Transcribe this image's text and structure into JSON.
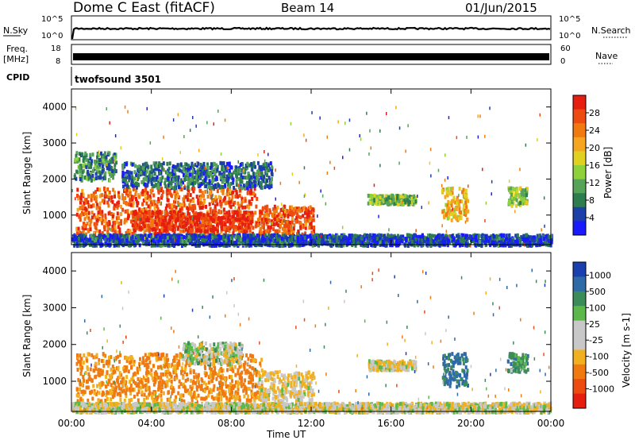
{
  "header": {
    "station": "Dome C East (fitACF)",
    "beam": "Beam 14",
    "date": "01/Jun/2015"
  },
  "noise_panel": {
    "left_label": "N.Sky",
    "left_ticks": [
      "10^5",
      "10^0"
    ],
    "right_label": "N.Search",
    "right_ticks": [
      "10^5",
      "10^0"
    ]
  },
  "freq_panel": {
    "left_label_top": "Freq.",
    "left_label_unit": "[MHz]",
    "left_ticks": [
      "18",
      "8"
    ],
    "right_label": "Nave",
    "right_ticks": [
      "60",
      "0"
    ]
  },
  "cpid_panel": {
    "label": "CPID",
    "value": "twofsound 3501"
  },
  "colors": {
    "power": [
      "#1a1aff",
      "#1c3fa8",
      "#2e7d4f",
      "#56a35a",
      "#8fd13a",
      "#e0d020",
      "#f5a520",
      "#f07a10",
      "#ee4b10",
      "#e61e0f"
    ],
    "velocity": [
      "#1a3fae",
      "#2f6aa8",
      "#3c8c5a",
      "#5cb84a",
      "#c8c8c8",
      "#c8c8c8",
      "#f0b020",
      "#f07a10",
      "#ee4b10",
      "#e61e0f"
    ]
  },
  "chart_data": [
    {
      "type": "heatmap",
      "name": "power",
      "ylabel": "Slant Range [km]",
      "xlabel": "Time UT",
      "xlim": [
        "00:00",
        "24:00"
      ],
      "ylim": [
        180,
        4500
      ],
      "x_ticks": [
        "00:00",
        "04:00",
        "08:00",
        "12:00",
        "16:00",
        "20:00",
        "00:00"
      ],
      "y_ticks": [
        1000,
        2000,
        3000,
        4000
      ],
      "colorbar": {
        "label": "Power [dB]",
        "ticks": [
          4,
          8,
          12,
          16,
          20,
          24,
          28
        ]
      },
      "blobs": [
        {
          "t0": 0.2,
          "t1": 9.3,
          "r0": 500,
          "r1": 1800,
          "level": 26
        },
        {
          "t0": 3.0,
          "t1": 9.0,
          "r0": 600,
          "r1": 1150,
          "level": 29
        },
        {
          "t0": 9.3,
          "t1": 12.1,
          "r0": 500,
          "r1": 1300,
          "level": 27
        },
        {
          "t0": 0.1,
          "t1": 2.2,
          "r0": 2000,
          "r1": 2800,
          "level": 10
        },
        {
          "t0": 2.5,
          "t1": 10.0,
          "r0": 1800,
          "r1": 2500,
          "level": 8
        },
        {
          "t0": 14.8,
          "t1": 17.2,
          "r0": 1350,
          "r1": 1600,
          "level": 14
        },
        {
          "t0": 18.5,
          "t1": 19.8,
          "r0": 900,
          "r1": 1800,
          "level": 20
        },
        {
          "t0": 21.8,
          "t1": 22.8,
          "r0": 1300,
          "r1": 1800,
          "level": 15
        },
        {
          "t0": 0.0,
          "t1": 24.0,
          "r0": 200,
          "r1": 500,
          "level": 6
        }
      ]
    },
    {
      "type": "heatmap",
      "name": "velocity",
      "ylabel": "Slant Range [km]",
      "xlabel": "Time UT",
      "xlim": [
        "00:00",
        "24:00"
      ],
      "ylim": [
        180,
        4500
      ],
      "x_ticks": [
        "00:00",
        "04:00",
        "08:00",
        "12:00",
        "16:00",
        "20:00",
        "00:00"
      ],
      "y_ticks": [
        1000,
        2000,
        3000,
        4000
      ],
      "colorbar": {
        "label": "Velocity [m s-1]",
        "ticks": [
          "1000",
          "500",
          "100",
          "25",
          "-25",
          "-100",
          "-500",
          "-1000"
        ]
      },
      "blobs": [
        {
          "t0": 0.2,
          "t1": 9.5,
          "r0": 500,
          "r1": 1800,
          "vel": -300
        },
        {
          "t0": 5.5,
          "t1": 8.5,
          "r0": 1500,
          "r1": 2100,
          "vel": 0
        },
        {
          "t0": 9.3,
          "t1": 12.1,
          "r0": 500,
          "r1": 1300,
          "vel": -100
        },
        {
          "t0": 14.8,
          "t1": 17.2,
          "r0": 1350,
          "r1": 1600,
          "vel": -80
        },
        {
          "t0": 18.5,
          "t1": 19.8,
          "r0": 900,
          "r1": 1800,
          "vel": 300
        },
        {
          "t0": 21.8,
          "t1": 22.8,
          "r0": 1300,
          "r1": 1800,
          "vel": 150
        },
        {
          "t0": 0.0,
          "t1": 24.0,
          "r0": 200,
          "r1": 450,
          "vel": -50
        }
      ]
    }
  ]
}
